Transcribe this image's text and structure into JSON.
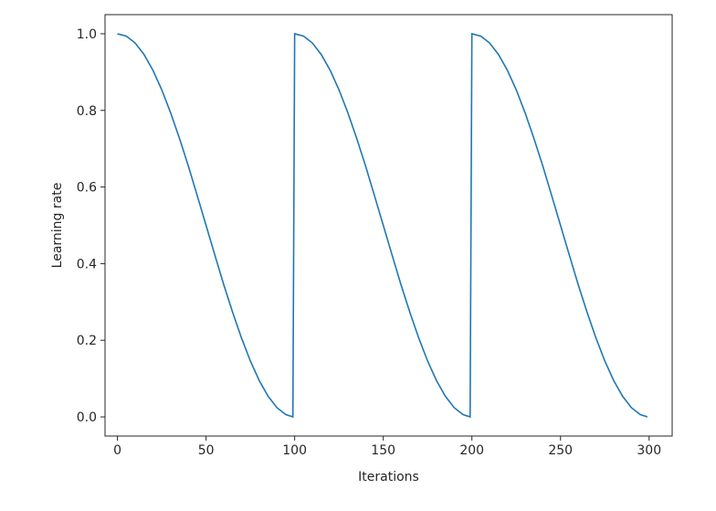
{
  "chart_data": {
    "type": "line",
    "title": "",
    "xlabel": "Iterations",
    "ylabel": "Learning rate",
    "xlim": [
      -7,
      313
    ],
    "ylim": [
      -0.05,
      1.05
    ],
    "x_ticks": [
      0,
      50,
      100,
      150,
      200,
      250,
      300
    ],
    "y_ticks": [
      0.0,
      0.2,
      0.4,
      0.6,
      0.8,
      1.0
    ],
    "x_tick_labels": [
      "0",
      "50",
      "100",
      "150",
      "200",
      "250",
      "300"
    ],
    "y_tick_labels": [
      "0.0",
      "0.2",
      "0.4",
      "0.6",
      "0.8",
      "1.0"
    ],
    "grid": false,
    "series": [
      {
        "color": "#1f77b4",
        "x": [
          0,
          5,
          10,
          15,
          20,
          25,
          30,
          35,
          40,
          45,
          50,
          55,
          60,
          65,
          70,
          75,
          80,
          85,
          90,
          95,
          99,
          100,
          105,
          110,
          115,
          120,
          125,
          130,
          135,
          140,
          145,
          150,
          155,
          160,
          165,
          170,
          175,
          180,
          185,
          190,
          195,
          199,
          200,
          205,
          210,
          215,
          220,
          225,
          230,
          235,
          240,
          245,
          250,
          255,
          260,
          265,
          270,
          275,
          280,
          285,
          290,
          295,
          299
        ],
        "y": [
          1.0,
          0.994,
          0.976,
          0.946,
          0.905,
          0.854,
          0.794,
          0.727,
          0.655,
          0.578,
          0.5,
          0.422,
          0.345,
          0.273,
          0.206,
          0.146,
          0.095,
          0.054,
          0.024,
          0.006,
          0.0,
          1.0,
          0.994,
          0.976,
          0.946,
          0.905,
          0.854,
          0.794,
          0.727,
          0.655,
          0.578,
          0.5,
          0.422,
          0.345,
          0.273,
          0.206,
          0.146,
          0.095,
          0.054,
          0.024,
          0.006,
          0.0,
          1.0,
          0.994,
          0.976,
          0.946,
          0.905,
          0.854,
          0.794,
          0.727,
          0.655,
          0.578,
          0.5,
          0.422,
          0.345,
          0.273,
          0.206,
          0.146,
          0.095,
          0.054,
          0.024,
          0.006,
          0.0
        ]
      }
    ]
  }
}
